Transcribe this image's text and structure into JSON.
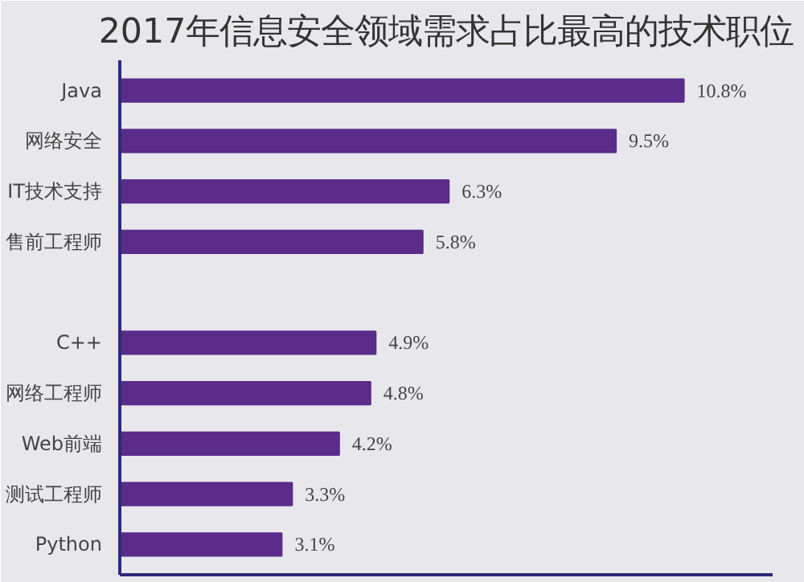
{
  "chart_data": {
    "type": "bar",
    "orientation": "horizontal",
    "title": "2017年信息安全领域需求占比最高的技术职位",
    "categories": [
      "Java",
      "网络安全",
      "IT技术支持",
      "售前工程师",
      null,
      "C++",
      "网络工程师",
      "Web前端",
      "测试工程师",
      "Python"
    ],
    "values": [
      10.8,
      9.5,
      6.3,
      5.8,
      null,
      4.9,
      4.8,
      4.2,
      3.3,
      3.1
    ],
    "value_labels": [
      "10.8%",
      "9.5%",
      "6.3%",
      "5.8%",
      null,
      "4.9%",
      "4.8%",
      "4.2%",
      "3.3%",
      "3.1%"
    ],
    "color": "#5b2c8a",
    "xlim": [
      0,
      12.5
    ],
    "grid": false
  }
}
